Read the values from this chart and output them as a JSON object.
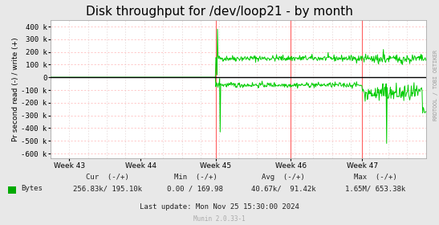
{
  "title": "Disk throughput for /dev/loop21 - by month",
  "ylabel": "Pr second read (-) / write (+)",
  "yticks": [
    400000,
    300000,
    200000,
    100000,
    0,
    -100000,
    -200000,
    -300000,
    -400000,
    -500000,
    -600000
  ],
  "ytick_labels": [
    "400 k",
    "300 k",
    "200 k",
    "100 k",
    "0",
    "-100 k",
    "-200 k",
    "-300 k",
    "-400 k",
    "-500 k",
    "-600 k"
  ],
  "ylim": [
    -640000,
    450000
  ],
  "xlim": [
    0,
    100
  ],
  "week_labels": [
    "Week 43",
    "Week 44",
    "Week 45",
    "Week 46",
    "Week 47"
  ],
  "week_positions": [
    5,
    24,
    44,
    64,
    83
  ],
  "red_vlines": [
    44,
    64,
    83
  ],
  "bg_color": "#e8e8e8",
  "plot_bg_color": "#ffffff",
  "grid_h_color": "#ffb0b0",
  "grid_v_color": "#ddcccc",
  "line_color": "#00cc00",
  "zero_line_color": "#000000",
  "border_color": "#aaaaaa",
  "legend_sq_color": "#00aa00",
  "cur_label": "Cur  (-/+)",
  "cur_val": "256.83k/ 195.10k",
  "min_label": "Min  (-/+)",
  "min_val": "0.00 / 169.98",
  "avg_label": "Avg  (-/+)",
  "avg_val": "40.67k/  91.42k",
  "max_label": "Max  (-/+)",
  "max_val": "1.65M/ 653.38k",
  "last_update": "Last update: Mon Nov 25 15:30:00 2024",
  "munin_label": "Munin 2.0.33-1",
  "rrdtool_label": "RRDTOOL / TOBI OETIKER",
  "title_fontsize": 11,
  "axis_fontsize": 6.5,
  "legend_fontsize": 6.5,
  "small_fontsize": 5.5
}
